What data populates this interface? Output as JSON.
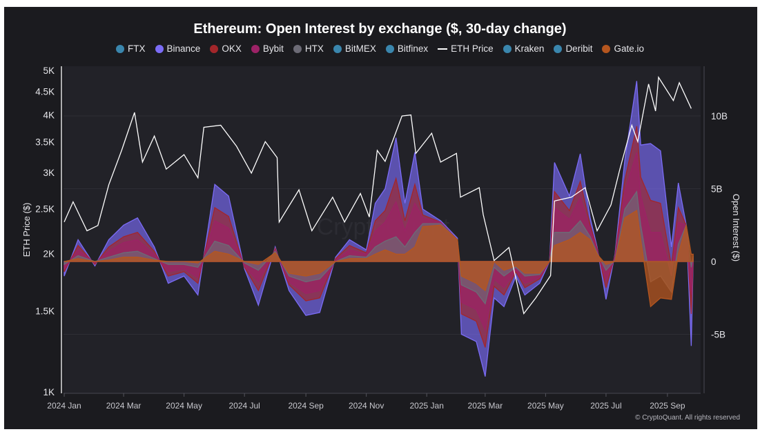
{
  "chart_data": {
    "type": "area",
    "title": "Ethereum: Open Interest by exchange ($, 30-day change)",
    "legend": {
      "placement": "top",
      "items": [
        {
          "name": "FTX",
          "color": "#3a86ad",
          "marker": "dot"
        },
        {
          "name": "Binance",
          "color": "#7b6cf6",
          "marker": "dot"
        },
        {
          "name": "OKX",
          "color": "#a3262a",
          "marker": "dot"
        },
        {
          "name": "Bybit",
          "color": "#9c2266",
          "marker": "dot"
        },
        {
          "name": "HTX",
          "color": "#6c6b76",
          "marker": "dot"
        },
        {
          "name": "BitMEX",
          "color": "#3a86ad",
          "marker": "dot"
        },
        {
          "name": "Bitfinex",
          "color": "#3a86ad",
          "marker": "dot"
        },
        {
          "name": "ETH Price",
          "color": "#ffffff",
          "marker": "line"
        },
        {
          "name": "Kraken",
          "color": "#3a86ad",
          "marker": "dot"
        },
        {
          "name": "Deribit",
          "color": "#3a86ad",
          "marker": "dot"
        },
        {
          "name": "Gate.io",
          "color": "#b5561f",
          "marker": "dot"
        }
      ]
    },
    "x_axis": {
      "type": "date",
      "range": [
        "2024-01-01",
        "2025-09-28"
      ],
      "ticks": [
        {
          "date": "2024-01-01",
          "label": "2024 Jan"
        },
        {
          "date": "2024-03-01",
          "label": "2024 Mar"
        },
        {
          "date": "2024-05-01",
          "label": "2024 May"
        },
        {
          "date": "2024-07-01",
          "label": "2024 Jul"
        },
        {
          "date": "2024-09-01",
          "label": "2024 Sep"
        },
        {
          "date": "2024-11-01",
          "label": "2024 Nov"
        },
        {
          "date": "2025-01-01",
          "label": "2025 Jan"
        },
        {
          "date": "2025-03-01",
          "label": "2025 Mar"
        },
        {
          "date": "2025-05-01",
          "label": "2025 May"
        },
        {
          "date": "2025-07-01",
          "label": "2025 Jul"
        },
        {
          "date": "2025-09-01",
          "label": "2025 Sep"
        }
      ]
    },
    "y_left": {
      "label": "ETH Price ($)",
      "scale": "log",
      "range": [
        1000,
        5000
      ],
      "ticks": [
        {
          "value": 1000,
          "label": "1K"
        },
        {
          "value": 1500,
          "label": "1.5K"
        },
        {
          "value": 2000,
          "label": "2K"
        },
        {
          "value": 2500,
          "label": "2.5K"
        },
        {
          "value": 3000,
          "label": "3K"
        },
        {
          "value": 3500,
          "label": "3.5K"
        },
        {
          "value": 4000,
          "label": "4K"
        },
        {
          "value": 4500,
          "label": "4.5K"
        },
        {
          "value": 5000,
          "label": "5K"
        }
      ]
    },
    "y_right": {
      "label": "Open Interest ($)",
      "scale": "linear",
      "unit": "billion USD",
      "range": [
        -8.9,
        13.0
      ],
      "ticks": [
        {
          "value": -5,
          "label": "-5B"
        },
        {
          "value": 0,
          "label": "0"
        },
        {
          "value": 5,
          "label": "5B"
        },
        {
          "value": 10,
          "label": "10B"
        }
      ]
    },
    "grid": true,
    "eth_price": {
      "name": "ETH Price",
      "dates": [
        "2024-01-01",
        "2024-01-10",
        "2024-01-24",
        "2024-02-04",
        "2024-02-15",
        "2024-02-28",
        "2024-03-12",
        "2024-03-20",
        "2024-04-01",
        "2024-04-13",
        "2024-05-01",
        "2024-05-15",
        "2024-05-21",
        "2024-06-07",
        "2024-06-23",
        "2024-07-08",
        "2024-07-22",
        "2024-08-03",
        "2024-08-05",
        "2024-08-25",
        "2024-09-07",
        "2024-09-28",
        "2024-10-10",
        "2024-10-26",
        "2024-11-04",
        "2024-11-12",
        "2024-11-20",
        "2024-12-07",
        "2024-12-16",
        "2024-12-21",
        "2025-01-06",
        "2025-01-15",
        "2025-01-31",
        "2025-02-04",
        "2025-02-23",
        "2025-02-27",
        "2025-03-10",
        "2025-03-25",
        "2025-04-09",
        "2025-04-21",
        "2025-05-06",
        "2025-05-10",
        "2025-05-27",
        "2025-06-10",
        "2025-06-22",
        "2025-07-06",
        "2025-07-15",
        "2025-07-27",
        "2025-08-02",
        "2025-08-13",
        "2025-08-20",
        "2025-08-23",
        "2025-09-07",
        "2025-09-13",
        "2025-09-25"
      ],
      "values": [
        2340,
        2590,
        2240,
        2300,
        2820,
        3350,
        4050,
        3160,
        3600,
        3050,
        3280,
        2920,
        3760,
        3800,
        3420,
        2990,
        3500,
        3230,
        2340,
        2750,
        2240,
        2650,
        2340,
        2700,
        2400,
        3350,
        3170,
        3980,
        4000,
        3300,
        3650,
        3160,
        3300,
        2650,
        2780,
        2430,
        1930,
        2060,
        1480,
        1600,
        1790,
        2600,
        2650,
        2780,
        2240,
        2550,
        3050,
        3800,
        3500,
        4670,
        4080,
        4830,
        4300,
        4700,
        4130
      ]
    },
    "open_interest_change": {
      "dates": [
        "2024-01-01",
        "2024-01-15",
        "2024-02-01",
        "2024-02-15",
        "2024-03-01",
        "2024-03-15",
        "2024-04-01",
        "2024-04-15",
        "2024-05-01",
        "2024-05-15",
        "2024-06-01",
        "2024-06-15",
        "2024-07-01",
        "2024-07-15",
        "2024-08-01",
        "2024-08-15",
        "2024-09-01",
        "2024-09-15",
        "2024-10-01",
        "2024-10-15",
        "2024-11-01",
        "2024-11-10",
        "2024-11-20",
        "2024-12-01",
        "2024-12-10",
        "2024-12-20",
        "2024-12-28",
        "2025-01-15",
        "2025-02-01",
        "2025-02-05",
        "2025-02-20",
        "2025-03-01",
        "2025-03-10",
        "2025-03-20",
        "2025-04-01",
        "2025-04-10",
        "2025-04-25",
        "2025-05-05",
        "2025-05-10",
        "2025-05-25",
        "2025-06-05",
        "2025-06-15",
        "2025-06-22",
        "2025-07-01",
        "2025-07-10",
        "2025-07-20",
        "2025-08-01",
        "2025-08-05",
        "2025-08-15",
        "2025-08-25",
        "2025-09-05",
        "2025-09-12",
        "2025-09-20",
        "2025-09-25",
        "2025-09-27"
      ],
      "stacked": true,
      "series": [
        {
          "name": "Gate.io",
          "color": "#b5561f",
          "values": [
            0,
            0.2,
            0,
            0.1,
            0.3,
            0.3,
            0.1,
            0,
            0,
            -0.1,
            0.7,
            0.5,
            0,
            -0.2,
            0.6,
            -0.8,
            -1.0,
            -0.8,
            0,
            0.2,
            0.2,
            0.5,
            0.8,
            0.5,
            0.5,
            1.0,
            2.4,
            2.5,
            1.5,
            -1.0,
            -1.5,
            -2.0,
            0,
            -0.6,
            -0.3,
            -0.8,
            -0.8,
            0,
            1.1,
            1.5,
            2.0,
            1.5,
            0.5,
            -0.2,
            0,
            3.0,
            3.5,
            1.5,
            -3.1,
            -2.5,
            -2.6,
            0.5,
            2.5,
            0.5,
            0.5
          ]
        },
        {
          "name": "HTX",
          "color": "#6c6b76",
          "values": [
            -0.2,
            0.2,
            0,
            0.2,
            0.3,
            0.4,
            0.1,
            -0.2,
            -0.2,
            -0.3,
            0.7,
            0.6,
            -0.1,
            -0.4,
            0.1,
            -0.2,
            -0.4,
            -0.4,
            0,
            0.2,
            0.1,
            0.5,
            0.6,
            1.2,
            0.5,
            1.0,
            0.2,
            0.1,
            0,
            -0.6,
            -0.6,
            -0.9,
            -0.4,
            -0.4,
            -0.1,
            -0.2,
            -0.1,
            0,
            0.9,
            0.5,
            0.8,
            0.2,
            0.1,
            -0.4,
            0.1,
            0.6,
            1.3,
            1.0,
            1.7,
            1.5,
            0.5,
            0.7,
            0,
            -0.9,
            -0.1
          ]
        },
        {
          "name": "Bybit",
          "color": "#9c2266",
          "values": [
            -0.3,
            0.4,
            -0.1,
            0.4,
            0.7,
            0.8,
            0.3,
            -0.5,
            -0.3,
            -0.7,
            1.4,
            1.2,
            -0.2,
            -0.8,
            0.1,
            -0.4,
            -0.8,
            -0.8,
            0.1,
            0.4,
            0.2,
            1.1,
            1.3,
            2.4,
            1.1,
            2.0,
            0.4,
            0.1,
            0,
            -1.2,
            -1.2,
            -1.8,
            -0.8,
            -0.8,
            -0.2,
            -0.5,
            -0.2,
            0,
            1.7,
            0.9,
            1.6,
            0.5,
            0.2,
            -0.7,
            0.2,
            1.2,
            2.7,
            2.0,
            3.4,
            3.0,
            1.1,
            1.5,
            0,
            -1.9,
            -0.2
          ]
        },
        {
          "name": "OKX",
          "color": "#a3262a",
          "values": [
            -0.2,
            0.3,
            -0.1,
            0.3,
            0.4,
            0.5,
            0.2,
            -0.3,
            -0.2,
            -0.4,
            0.9,
            0.8,
            -0.1,
            -0.6,
            0.1,
            -0.2,
            -0.5,
            -0.5,
            0.1,
            0.3,
            0.1,
            0.7,
            0.8,
            1.6,
            0.7,
            1.3,
            0.2,
            0,
            0,
            -0.8,
            -0.8,
            -1.2,
            -0.5,
            -0.5,
            -0.1,
            -0.3,
            -0.1,
            0,
            1.1,
            0.6,
            1.1,
            0.3,
            0.1,
            -0.5,
            0.1,
            0.8,
            1.8,
            1.3,
            2.2,
            2.0,
            0.7,
            1.0,
            0,
            -1.3,
            -0.1
          ]
        },
        {
          "name": "Binance",
          "color": "#7b6cf6",
          "values": [
            -0.3,
            0.4,
            -0.1,
            0.5,
            0.8,
            1.0,
            0.3,
            -0.5,
            -0.3,
            -0.8,
            1.6,
            1.4,
            -0.1,
            -1.0,
            0.1,
            -0.4,
            -1.0,
            -1.0,
            0.1,
            0.4,
            0.2,
            1.2,
            1.5,
            2.8,
            1.2,
            2.2,
            0.4,
            0.1,
            0.1,
            -1.4,
            -1.4,
            -2.0,
            -0.8,
            -0.8,
            -0.3,
            -0.5,
            -0.3,
            0,
            2.0,
            1.0,
            1.9,
            0.5,
            0.1,
            -0.8,
            0.1,
            1.4,
            3.1,
            2.2,
            3.9,
            3.6,
            1.3,
            1.7,
            0,
            -2.2,
            -0.1
          ]
        }
      ]
    },
    "watermark": "CryptoQuant"
  },
  "footer": {
    "copyright": "© CryptoQuant. All rights reserved"
  }
}
